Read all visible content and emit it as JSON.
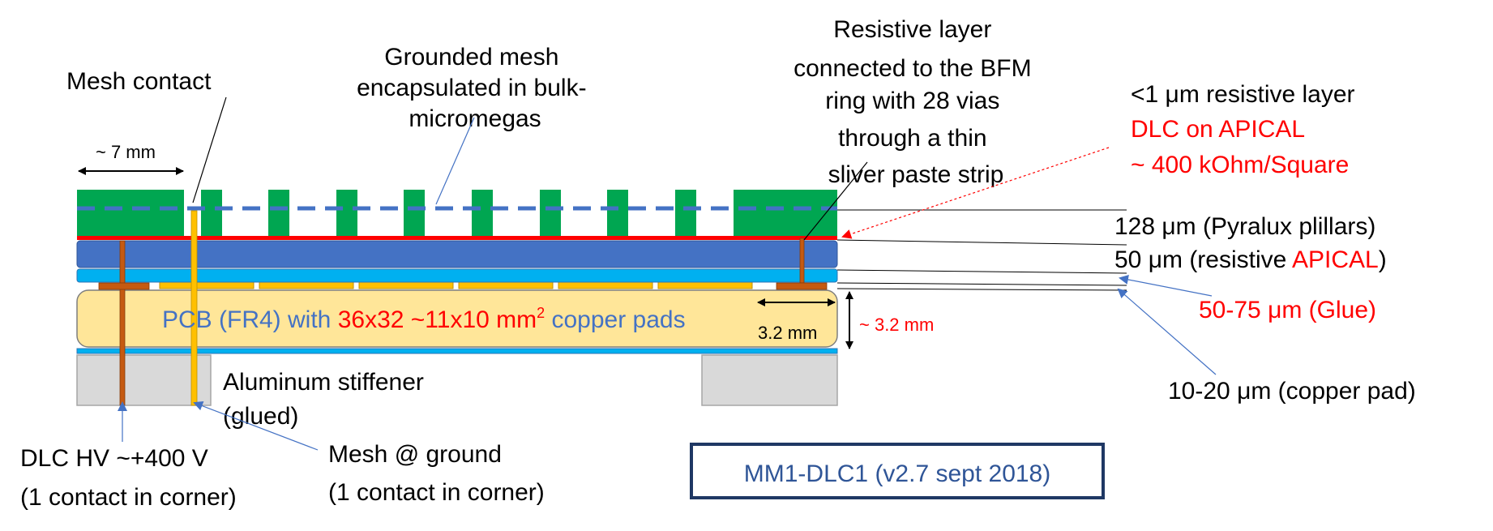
{
  "labels": {
    "mesh_contact": "Mesh contact",
    "grounded_mesh": [
      "Grounded mesh",
      "encapsulated in bulk-",
      "micromegas"
    ],
    "resistive_layer_conn": [
      "Resistive layer",
      "connected to the BFM",
      "ring with 28 vias",
      "through a thin",
      "sliver paste strip"
    ],
    "seven_mm": "~ 7 mm",
    "resistive_layer_thickness": "<1 μm resistive layer",
    "dlc_on_apical": "DLC on APICAL",
    "ohm_per_square": "~ 400 kOhm/Square",
    "pillars": "128 μm (Pyralux plillars)",
    "apical_prefix": "50 μm (resistive ",
    "apical_red": "APICAL",
    "apical_suffix": ")",
    "glue": "50-75 μm (Glue)",
    "copper_pad": "10-20 μm (copper pad)",
    "pcb_prefix": "PCB (FR4) with ",
    "pcb_red": "36x32 ~11x10 mm",
    "pcb_sup": "2",
    "pcb_suffix": " copper pads",
    "three_two_inner": "3.2 mm",
    "three_two_outer": "~ 3.2 mm",
    "stiffener": [
      "Aluminum stiffener",
      "(glued)"
    ],
    "dlc_hv": [
      "DLC HV ~+400 V",
      "(1 contact in corner)"
    ],
    "mesh_ground": [
      "Mesh @ ground",
      "(1 contact in corner)"
    ],
    "version_box": "MM1-DLC1 (v2.7 sept 2018)"
  },
  "colors": {
    "pillar_green": "#00a651",
    "mesh_blue": "#4472c4",
    "kapton_blue": "#4472c4",
    "light_blue": "#00b0f0",
    "pcb_yellow": "#ffe699",
    "pad_gold": "#ffc000",
    "aluminum_gray": "#d9d9d9",
    "dlc_red": "#ff0000",
    "via_brown": "#c55a11",
    "box_border": "#1f3864"
  }
}
